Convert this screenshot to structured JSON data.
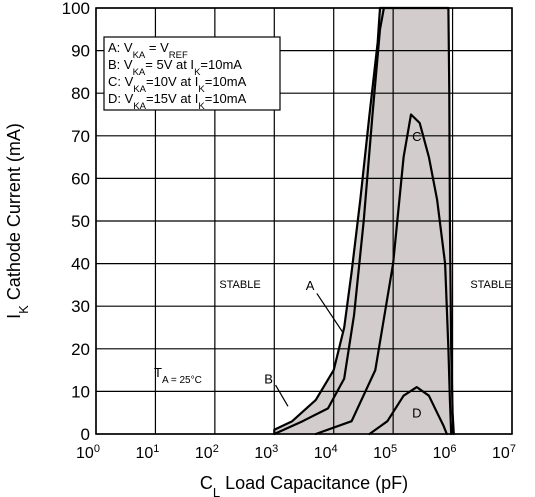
{
  "chart_data": {
    "type": "area",
    "x_scale": "log",
    "grid": true,
    "xlim": [
      1,
      10000000
    ],
    "ylim": [
      0,
      100
    ],
    "x_ticks": [
      {
        "value": 1,
        "base": "10",
        "exp": "0"
      },
      {
        "value": 10,
        "base": "10",
        "exp": "1"
      },
      {
        "value": 100,
        "base": "10",
        "exp": "2"
      },
      {
        "value": 1000,
        "base": "10",
        "exp": "3"
      },
      {
        "value": 10000,
        "base": "10",
        "exp": "4"
      },
      {
        "value": 100000,
        "base": "10",
        "exp": "5"
      },
      {
        "value": 1000000,
        "base": "10",
        "exp": "6"
      },
      {
        "value": 10000000,
        "base": "10",
        "exp": "7"
      }
    ],
    "y_ticks": [
      "0",
      "10",
      "20",
      "30",
      "40",
      "50",
      "60",
      "70",
      "80",
      "90",
      "100"
    ],
    "xlabel": {
      "pre": "C",
      "sub": "L",
      "post": " Load Capacitance (pF)"
    },
    "ylabel": {
      "pre": "I",
      "sub": "K",
      "post": " Cathode Current (mA)"
    },
    "legend": {
      "placement": "top-left",
      "entries": [
        [
          {
            "t": "A: V"
          },
          {
            "t": "KA",
            "s": "sub"
          },
          {
            "t": " = V"
          },
          {
            "t": "REF",
            "s": "sub"
          }
        ],
        [
          {
            "t": "B: V"
          },
          {
            "t": "KA",
            "s": "sub"
          },
          {
            "t": "= 5V at I"
          },
          {
            "t": "K",
            "s": "sub"
          },
          {
            "t": "=10mA"
          }
        ],
        [
          {
            "t": "C: V"
          },
          {
            "t": "KA",
            "s": "sub"
          },
          {
            "t": "=10V at I"
          },
          {
            "t": "K",
            "s": "sub"
          },
          {
            "t": "=10mA"
          }
        ],
        [
          {
            "t": "D: V"
          },
          {
            "t": "KA",
            "s": "sub"
          },
          {
            "t": "=15V at I"
          },
          {
            "t": "K",
            "s": "sub"
          },
          {
            "t": "=10mA"
          }
        ]
      ]
    },
    "annotations": {
      "stable_left": "STABLE",
      "stable_right": "STABLE",
      "temperature": {
        "pre": "T",
        "sub": "A = 25°C"
      },
      "curve_labels": {
        "A": "A",
        "B": "B",
        "C": "C",
        "D": "D"
      }
    },
    "curve_label_positions": {
      "A": {
        "x": 4000,
        "y": 35
      },
      "B": {
        "x": 800,
        "y": 13
      },
      "C": {
        "x": 250000,
        "y": 70
      },
      "D": {
        "x": 250000,
        "y": 5
      }
    },
    "curve_label_leaders": {
      "A": [
        [
          5200,
          33
        ],
        [
          14000,
          24
        ]
      ],
      "B": [
        [
          1050,
          11.5
        ],
        [
          1700,
          6.5
        ]
      ]
    },
    "series": [
      {
        "name": "A",
        "kind": "unstable-region-boundary",
        "points": [
          [
            1000,
            0
          ],
          [
            1000,
            1
          ],
          [
            2000,
            3
          ],
          [
            5000,
            8
          ],
          [
            10000,
            15
          ],
          [
            15000,
            25
          ],
          [
            20000,
            38
          ],
          [
            28000,
            55
          ],
          [
            40000,
            75
          ],
          [
            55000,
            92
          ],
          [
            60000,
            100
          ],
          [
            850000,
            100
          ],
          [
            880000,
            80
          ],
          [
            900000,
            50
          ],
          [
            950000,
            20
          ],
          [
            1000000,
            5
          ],
          [
            1050000,
            0
          ]
        ]
      },
      {
        "name": "B",
        "kind": "curve",
        "points": [
          [
            1000,
            0
          ],
          [
            3000,
            3
          ],
          [
            8000,
            6
          ],
          [
            15000,
            13
          ],
          [
            22000,
            28
          ],
          [
            32000,
            50
          ],
          [
            45000,
            75
          ],
          [
            60000,
            95
          ],
          [
            70000,
            100
          ]
        ]
      },
      {
        "name": "C",
        "kind": "curve",
        "points": [
          [
            5000,
            0
          ],
          [
            20000,
            3
          ],
          [
            50000,
            15
          ],
          [
            100000,
            40
          ],
          [
            150000,
            65
          ],
          [
            200000,
            75
          ],
          [
            280000,
            73
          ],
          [
            400000,
            65
          ],
          [
            550000,
            55
          ],
          [
            750000,
            40
          ],
          [
            850000,
            20
          ],
          [
            900000,
            8
          ],
          [
            950000,
            0
          ]
        ]
      },
      {
        "name": "D",
        "kind": "curve",
        "points": [
          [
            40000,
            0
          ],
          [
            80000,
            3
          ],
          [
            150000,
            9
          ],
          [
            250000,
            11
          ],
          [
            400000,
            9
          ],
          [
            550000,
            5
          ],
          [
            700000,
            2
          ],
          [
            800000,
            0
          ]
        ]
      }
    ]
  }
}
